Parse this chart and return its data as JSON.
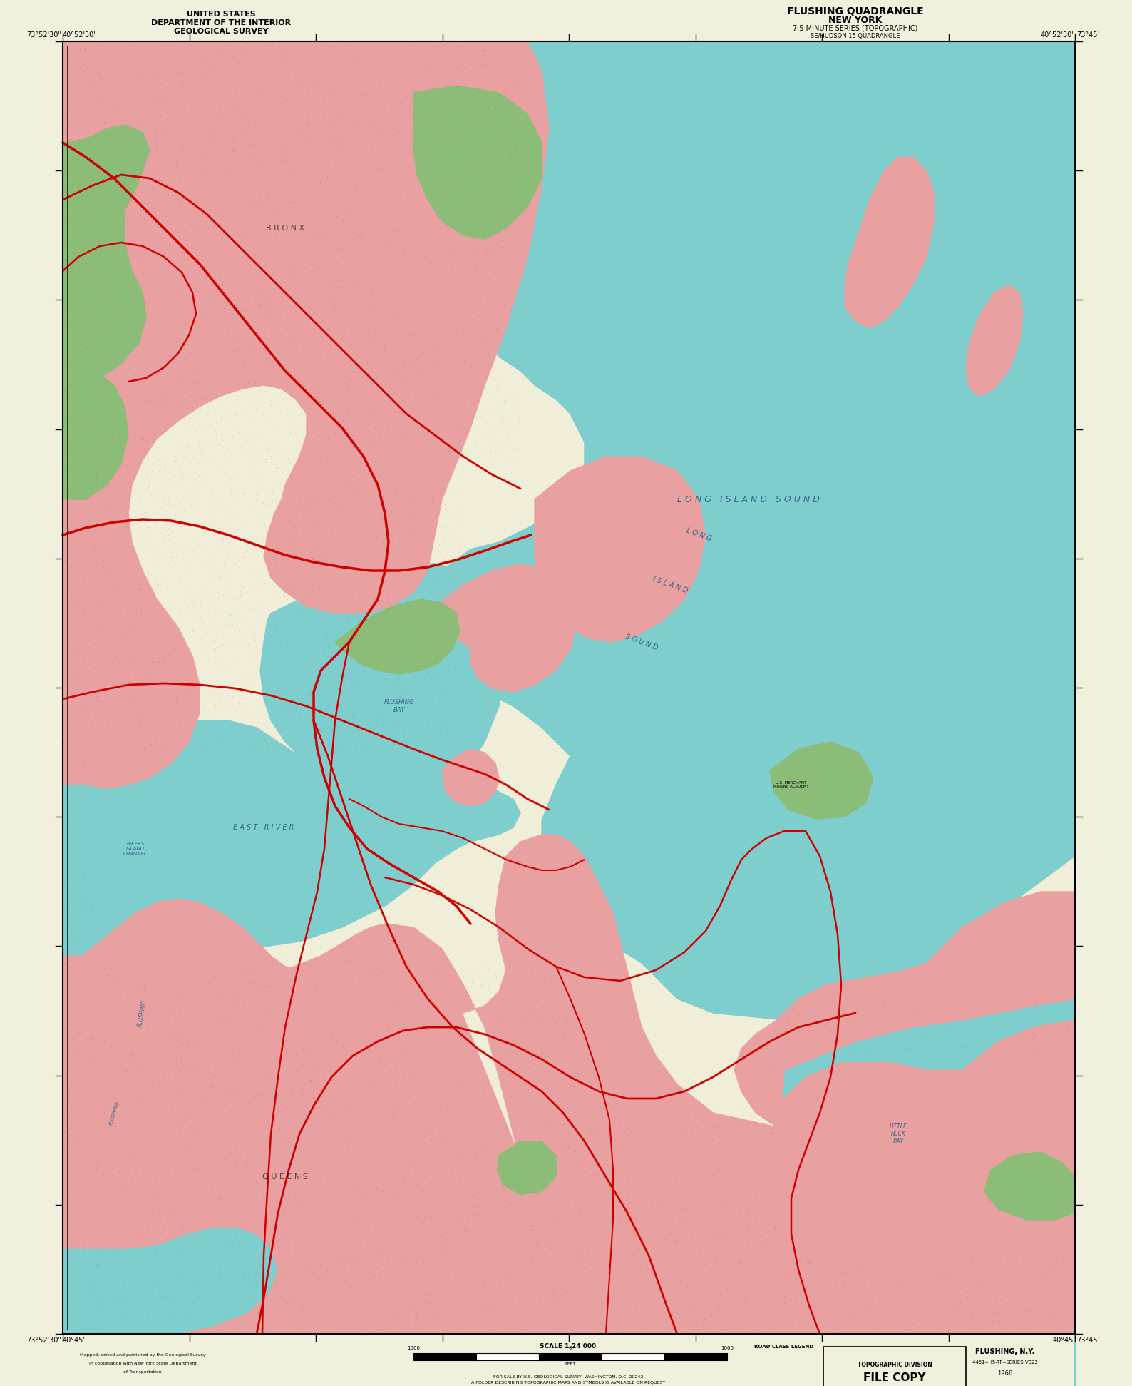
{
  "title_left_line1": "UNITED STATES",
  "title_left_line2": "DEPARTMENT OF THE INTERIOR",
  "title_left_line3": "GEOLOGICAL SURVEY",
  "title_right_line1": "FLUSHING QUADRANGLE",
  "title_right_line2": "NEW YORK",
  "title_right_line3": "7.5 MINUTE SERIES (TOPOGRAPHIC)",
  "title_right_line4": "SE/HUDSON 15 QUADRANGLE",
  "background_color": "#f0f0dc",
  "water_color": "#7ecece",
  "urban_color": "#e8a0a0",
  "green_color": "#8cbd78",
  "road_color": "#cc0000",
  "land_color": "#f0eed8",
  "fig_width": 15.88,
  "fig_height": 19.43,
  "dpi": 100
}
